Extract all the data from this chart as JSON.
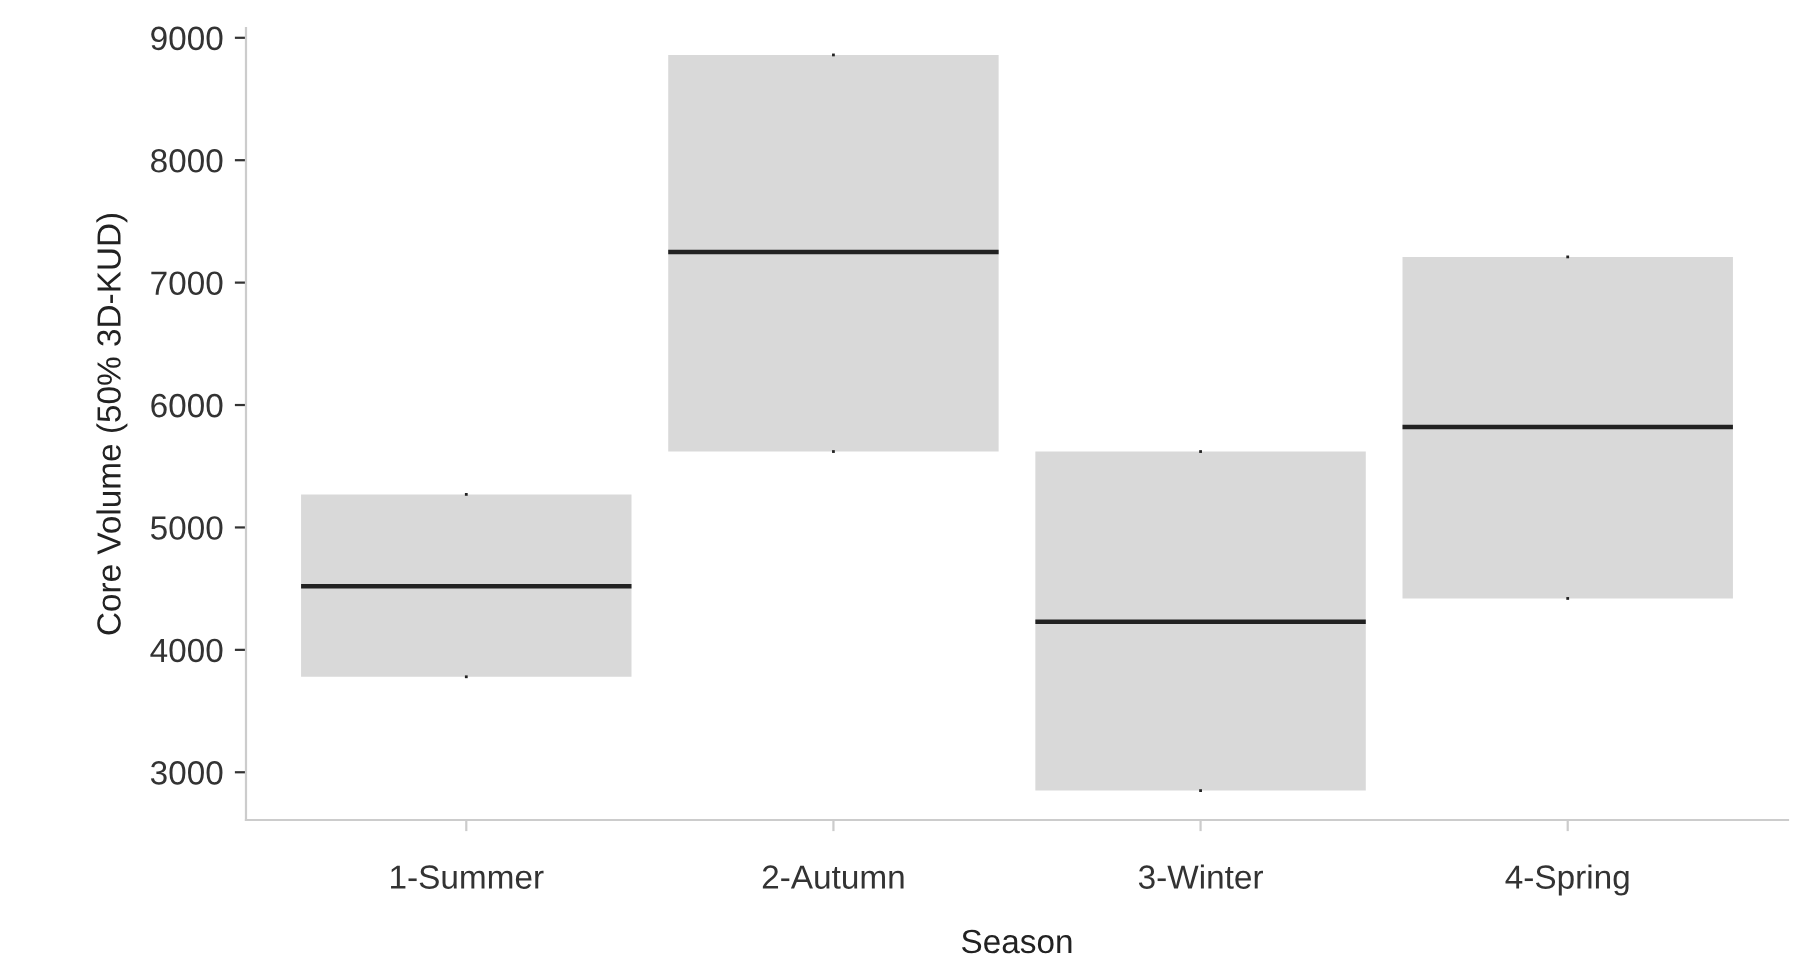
{
  "chart_data": {
    "type": "box",
    "xlabel": "Season",
    "ylabel": "Core Volume (50% 3D-KUD)",
    "categories": [
      "1-Summer",
      "2-Autumn",
      "3-Winter",
      "4-Spring"
    ],
    "boxes": [
      {
        "low": 3780,
        "q1": 3780,
        "median": 4520,
        "q3": 5270,
        "high": 5270
      },
      {
        "low": 5620,
        "q1": 5620,
        "median": 7250,
        "q3": 8860,
        "high": 8860
      },
      {
        "low": 2850,
        "q1": 2850,
        "median": 4230,
        "q3": 5620,
        "high": 5620
      },
      {
        "low": 4420,
        "q1": 4420,
        "median": 5820,
        "q3": 7210,
        "high": 7210
      }
    ],
    "color": "#d9d9d9",
    "ylim": [
      2610,
      9080
    ],
    "yticks": [
      3000,
      4000,
      5000,
      6000,
      7000,
      8000,
      9000
    ],
    "grid": false
  }
}
